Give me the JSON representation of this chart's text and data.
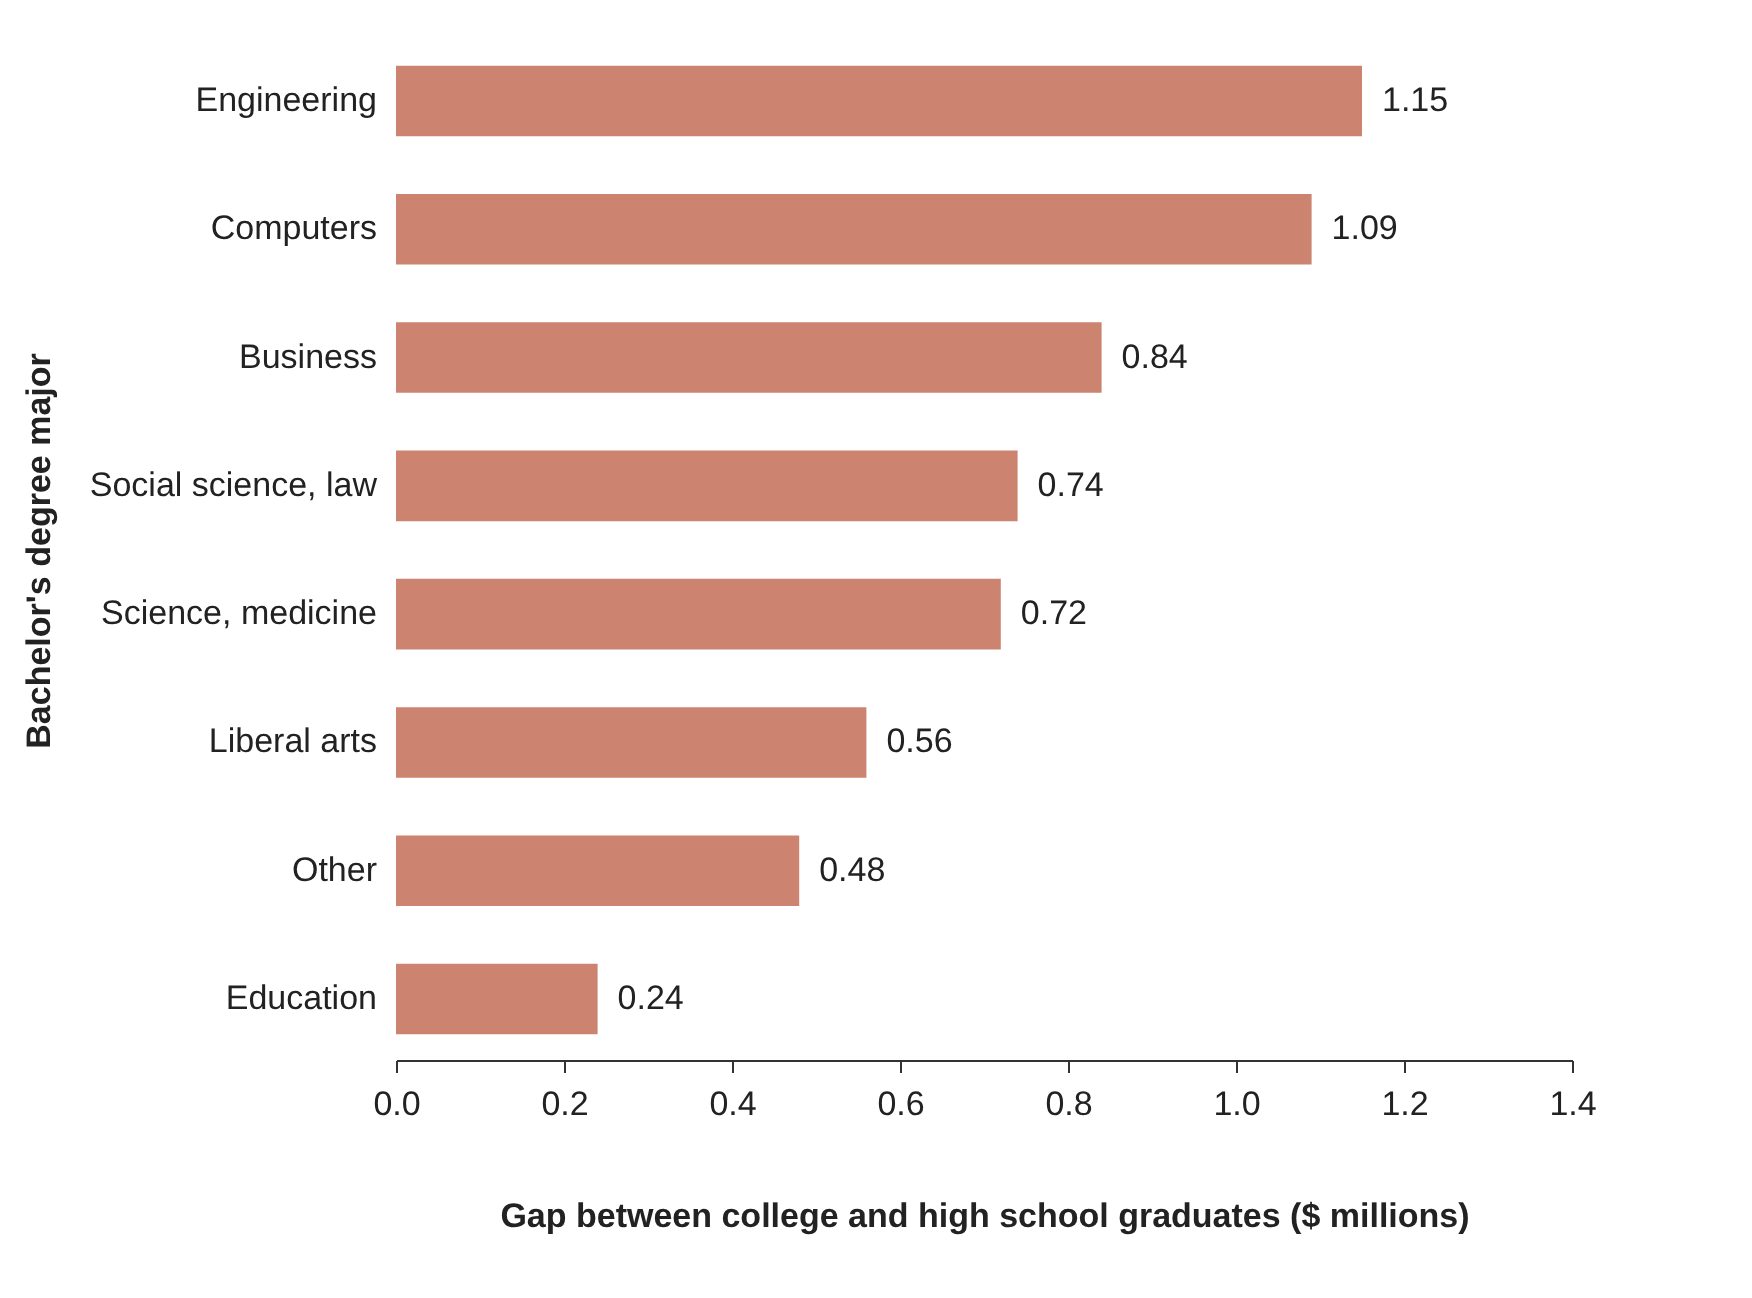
{
  "chart_data": {
    "type": "bar",
    "orientation": "horizontal",
    "xlabel": "Gap between college and high school graduates ($ millions)",
    "ylabel": "Bachelor's degree major",
    "categories": [
      "Engineering",
      "Computers",
      "Business",
      "Social science, law",
      "Science, medicine",
      "Liberal arts",
      "Other",
      "Education"
    ],
    "values": [
      1.15,
      1.09,
      0.84,
      0.74,
      0.72,
      0.56,
      0.48,
      0.24
    ],
    "color": "#cc8470",
    "xlim": [
      0,
      1.4
    ],
    "xticks": [
      {
        "value": 0,
        "label": "0.0"
      },
      {
        "value": 0.2,
        "label": "0.2"
      },
      {
        "value": 0.4,
        "label": "0.4"
      },
      {
        "value": 0.6,
        "label": "0.6"
      },
      {
        "value": 0.8,
        "label": "0.8"
      },
      {
        "value": 1,
        "label": "1.0"
      },
      {
        "value": 1.2,
        "label": "1.2"
      },
      {
        "value": 1.4,
        "label": "1.4"
      }
    ],
    "data_labels": true,
    "grid": false
  }
}
